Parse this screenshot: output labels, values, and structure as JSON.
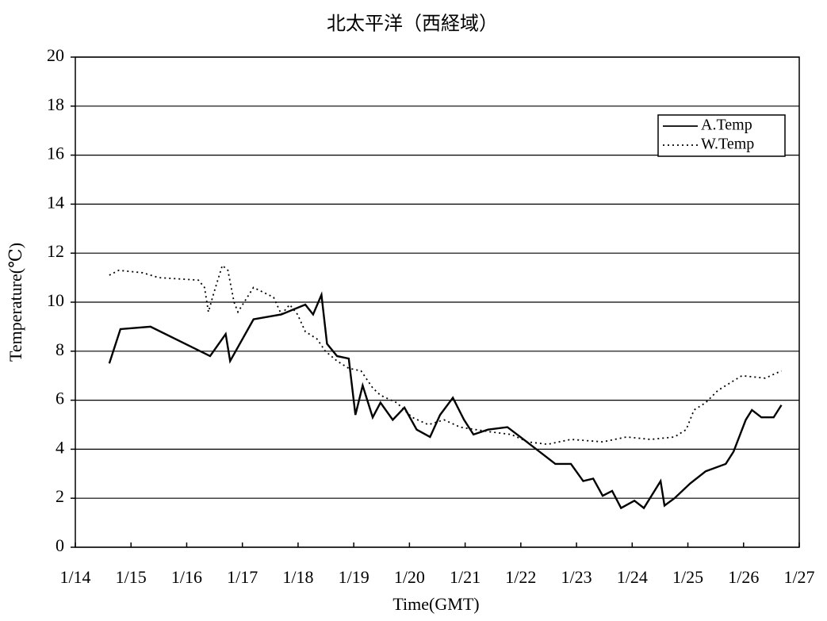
{
  "chart_data": {
    "type": "line",
    "title": "北太平洋（西経域）",
    "xlabel": "Time(GMT)",
    "ylabel": "Temperature(℃)",
    "xlim": [
      14,
      27
    ],
    "xticks": [
      {
        "value": 14,
        "label": "1/14"
      },
      {
        "value": 15,
        "label": "1/15"
      },
      {
        "value": 16,
        "label": "1/16"
      },
      {
        "value": 17,
        "label": "1/17"
      },
      {
        "value": 18,
        "label": "1/18"
      },
      {
        "value": 19,
        "label": "1/19"
      },
      {
        "value": 20,
        "label": "1/20"
      },
      {
        "value": 21,
        "label": "1/21"
      },
      {
        "value": 22,
        "label": "1/22"
      },
      {
        "value": 23,
        "label": "1/23"
      },
      {
        "value": 24,
        "label": "1/24"
      },
      {
        "value": 25,
        "label": "1/25"
      },
      {
        "value": 26,
        "label": "1/26"
      },
      {
        "value": 27,
        "label": "1/27"
      }
    ],
    "ylim": [
      0,
      20
    ],
    "yticks": [
      0,
      2,
      4,
      6,
      8,
      10,
      12,
      14,
      16,
      18,
      20
    ],
    "grid": true,
    "legend": "upper right",
    "series": [
      {
        "name": "A.Temp",
        "color": "#000000",
        "style": "solid",
        "x": [
          14.61,
          14.81,
          15.35,
          16.42,
          16.7,
          16.78,
          17.2,
          17.7,
          18.13,
          18.27,
          18.42,
          18.52,
          18.7,
          18.91,
          19.03,
          19.16,
          19.34,
          19.48,
          19.7,
          19.91,
          20.13,
          20.37,
          20.55,
          20.78,
          20.98,
          21.15,
          21.41,
          21.76,
          22.05,
          22.45,
          22.62,
          22.9,
          23.12,
          23.3,
          23.47,
          23.64,
          23.8,
          24.04,
          24.21,
          24.51,
          24.58,
          24.76,
          25.04,
          25.32,
          25.68,
          25.82,
          26.04,
          26.15,
          26.32,
          26.54,
          26.68
        ],
        "values": [
          7.5,
          8.9,
          9.0,
          7.8,
          8.7,
          7.6,
          9.3,
          9.5,
          9.9,
          9.5,
          10.3,
          8.3,
          7.8,
          7.7,
          5.4,
          6.6,
          5.3,
          5.9,
          5.2,
          5.7,
          4.8,
          4.5,
          5.4,
          6.1,
          5.2,
          4.6,
          4.8,
          4.9,
          4.4,
          3.7,
          3.4,
          3.4,
          2.7,
          2.8,
          2.1,
          2.3,
          1.6,
          1.9,
          1.6,
          2.7,
          1.7,
          2.0,
          2.6,
          3.1,
          3.4,
          3.9,
          5.2,
          5.6,
          5.3,
          5.3,
          5.8
        ]
      },
      {
        "name": "W.Temp",
        "color": "#000000",
        "style": "dotted",
        "x": [
          14.61,
          14.78,
          15.21,
          15.5,
          16.21,
          16.32,
          16.39,
          16.49,
          16.64,
          16.74,
          16.85,
          16.92,
          17.2,
          17.56,
          17.7,
          17.85,
          17.99,
          18.13,
          18.34,
          18.49,
          18.7,
          18.91,
          19.13,
          19.34,
          19.48,
          19.77,
          20.05,
          20.34,
          20.62,
          20.91,
          21.19,
          21.48,
          21.83,
          22.12,
          22.48,
          22.9,
          23.47,
          23.9,
          24.33,
          24.76,
          24.97,
          25.11,
          25.32,
          25.54,
          25.97,
          26.39,
          26.68
        ],
        "values": [
          11.1,
          11.3,
          11.2,
          11.0,
          10.9,
          10.6,
          9.6,
          10.4,
          11.5,
          11.3,
          10.0,
          9.6,
          10.6,
          10.2,
          9.5,
          9.9,
          9.5,
          8.8,
          8.5,
          8.0,
          7.6,
          7.3,
          7.2,
          6.5,
          6.2,
          5.9,
          5.3,
          5.0,
          5.2,
          4.9,
          4.8,
          4.7,
          4.6,
          4.3,
          4.2,
          4.4,
          4.3,
          4.5,
          4.4,
          4.5,
          4.8,
          5.6,
          5.9,
          6.4,
          7.0,
          6.9,
          7.2
        ]
      }
    ]
  }
}
